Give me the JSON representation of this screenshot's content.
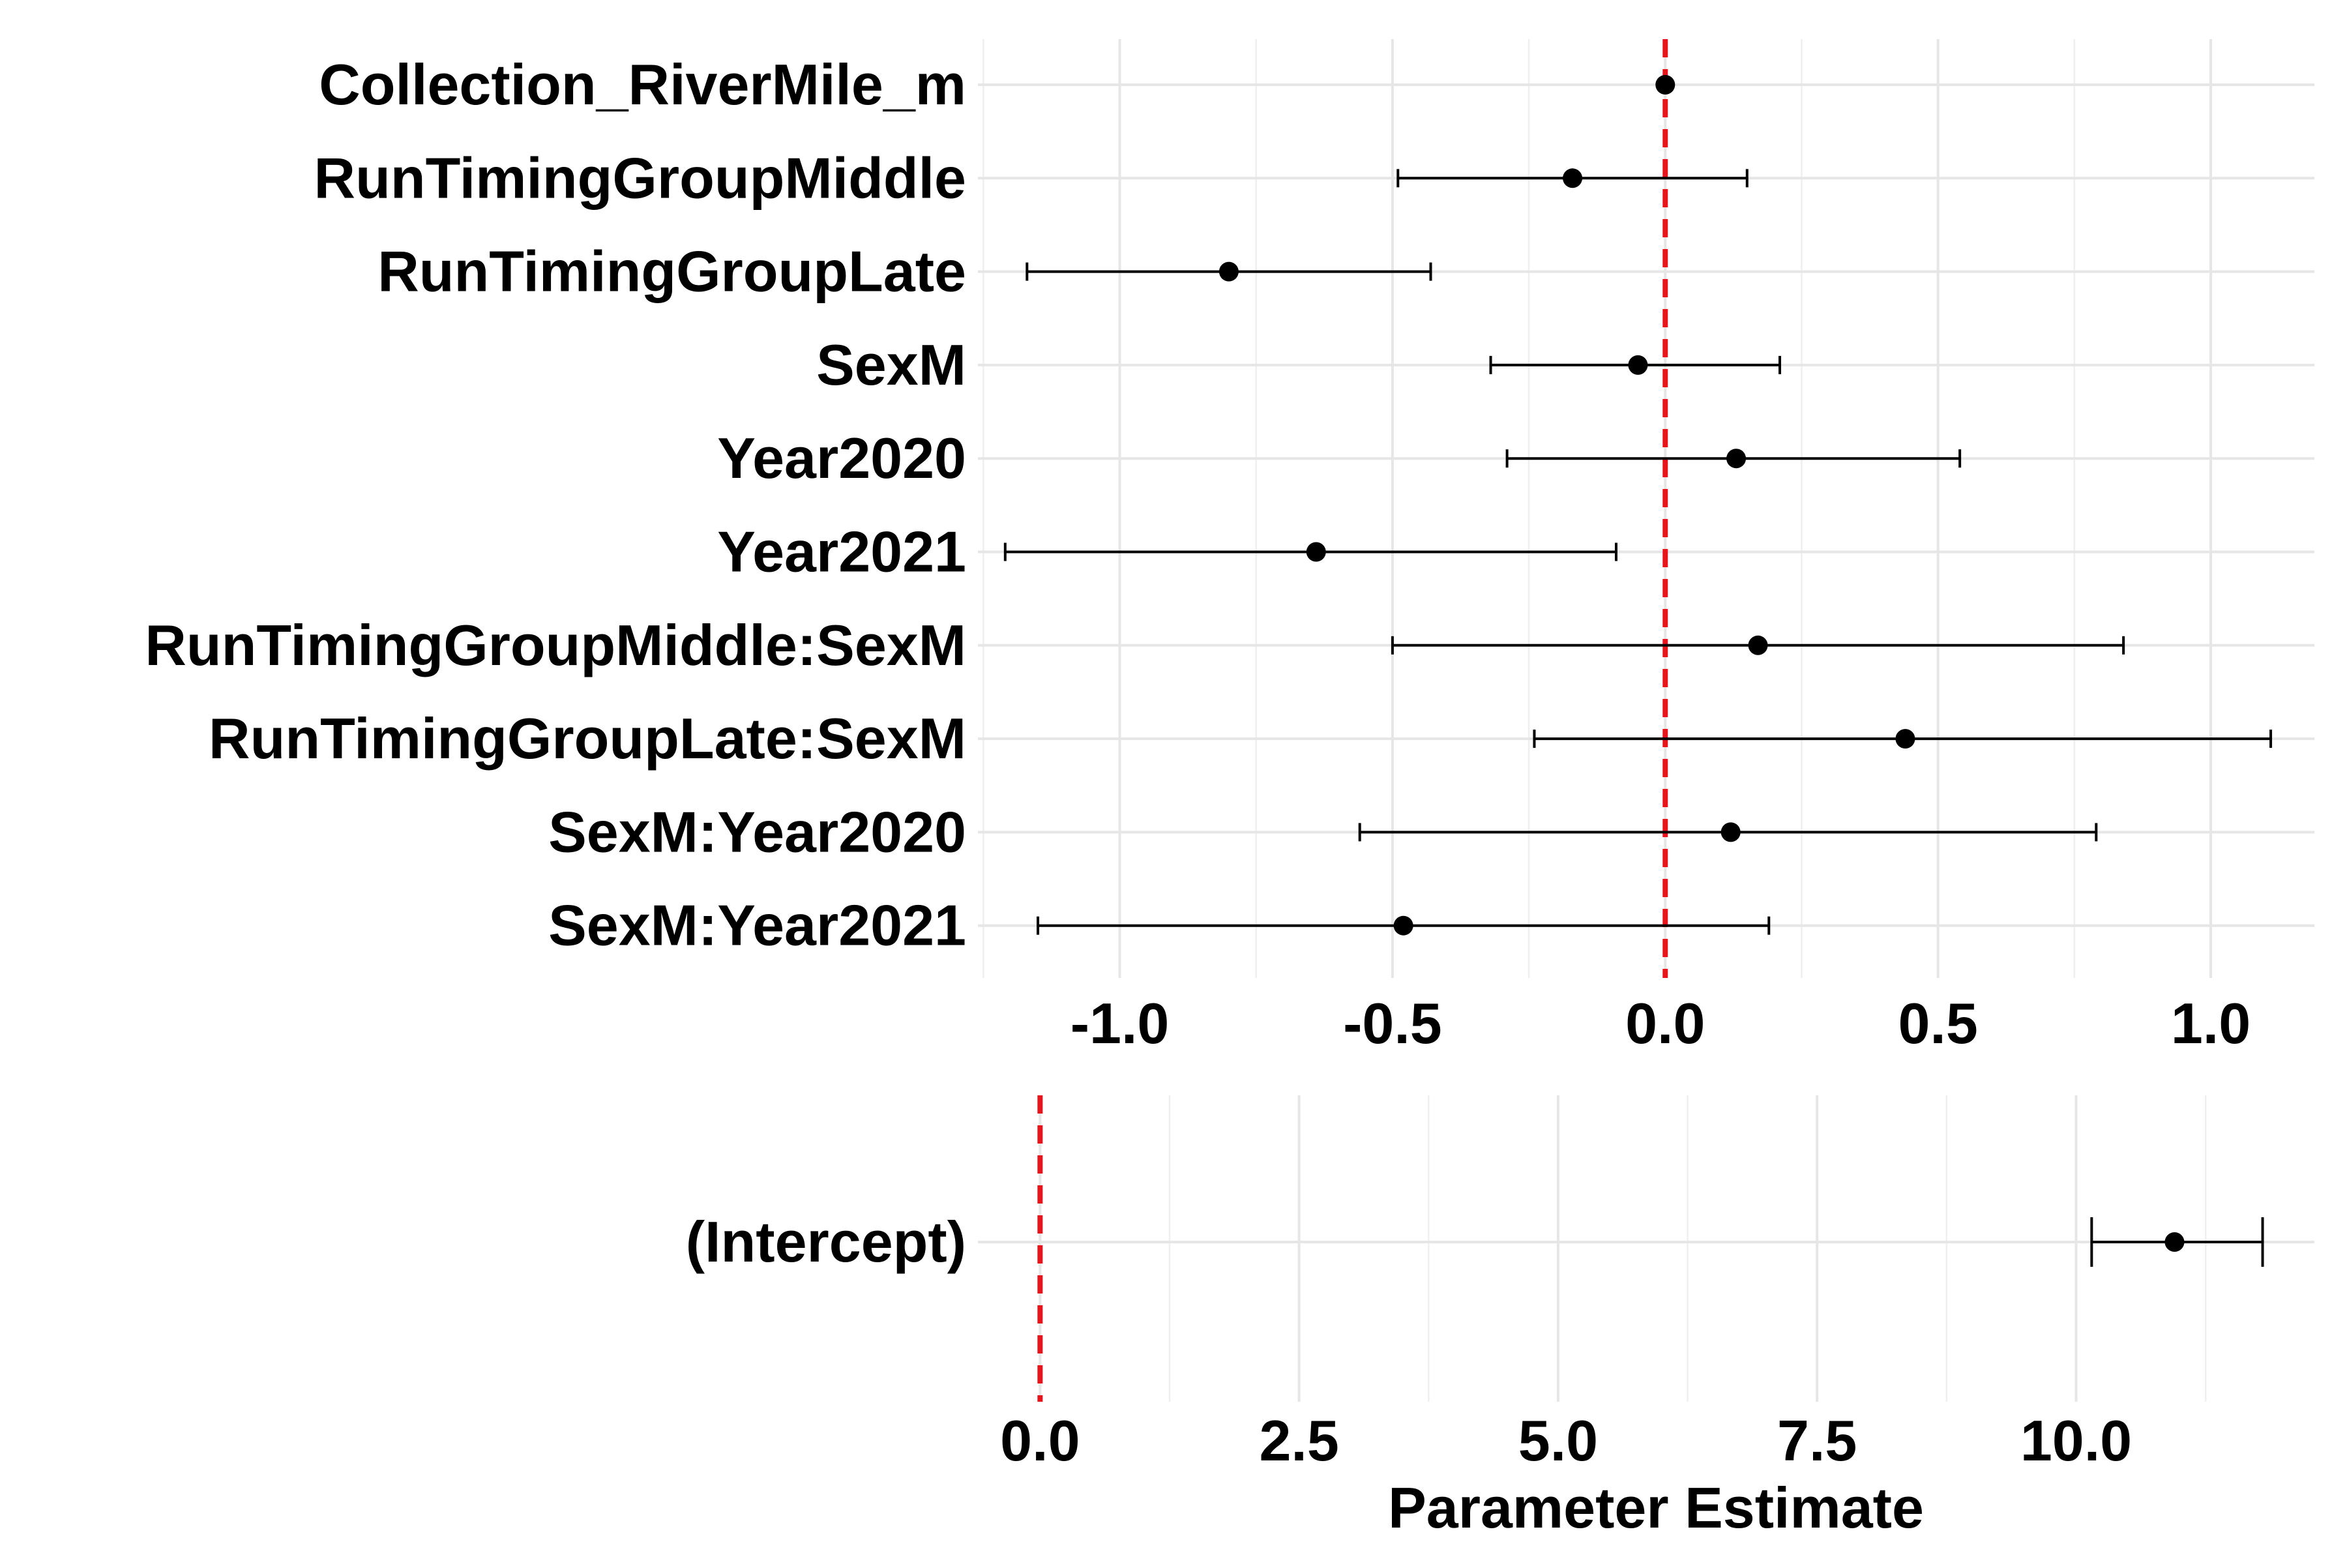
{
  "chart_data": [
    {
      "type": "scatter",
      "style": "coefficient-plot-with-error-bars",
      "xlabel": "",
      "ylabel": "",
      "xlim": [
        -1.26,
        1.19
      ],
      "xticks": [
        -1.0,
        -0.5,
        0.0,
        0.5,
        1.0
      ],
      "xtick_labels": [
        "-1.0",
        "-0.5",
        "0.0",
        "0.5",
        "1.0"
      ],
      "reference_line": 0.0,
      "reference_color": "#e8141b",
      "grid": true,
      "categories": [
        "Collection_RiverMile_m",
        "RunTimingGroupMiddle",
        "RunTimingGroupLate",
        "SexM",
        "Year2020",
        "Year2021",
        "RunTimingGroupMiddle:SexM",
        "RunTimingGroupLate:SexM",
        "SexM:Year2020",
        "SexM:Year2021"
      ],
      "estimates": [
        0.0,
        -0.17,
        -0.8,
        -0.05,
        0.13,
        -0.64,
        0.17,
        0.44,
        0.12,
        -0.48
      ],
      "lower": [
        0.0,
        -0.49,
        -1.17,
        -0.32,
        -0.29,
        -1.21,
        -0.5,
        -0.24,
        -0.56,
        -1.15
      ],
      "upper": [
        0.0,
        0.15,
        -0.43,
        0.21,
        0.54,
        -0.09,
        0.84,
        1.11,
        0.79,
        0.19
      ]
    },
    {
      "type": "scatter",
      "style": "coefficient-plot-with-error-bars",
      "xlabel": "Parameter Estimate",
      "ylabel": "",
      "xlim": [
        -0.6,
        12.3
      ],
      "xticks": [
        0.0,
        2.5,
        5.0,
        7.5,
        10.0
      ],
      "xtick_labels": [
        "0.0",
        "2.5",
        "5.0",
        "7.5",
        "10.0"
      ],
      "reference_line": 0.0,
      "reference_color": "#e8141b",
      "grid": true,
      "categories": [
        "(Intercept)"
      ],
      "estimates": [
        10.95
      ],
      "lower": [
        10.15
      ],
      "upper": [
        11.8
      ]
    }
  ]
}
